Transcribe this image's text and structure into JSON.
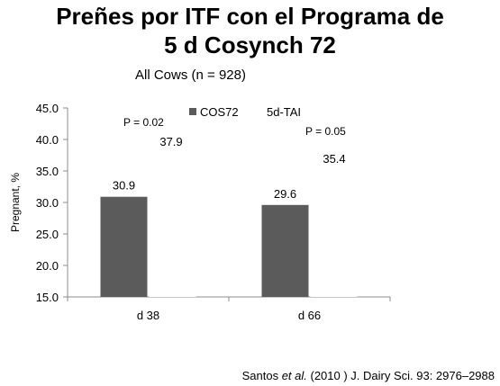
{
  "title_lines": [
    "Preñes por ITF con el Programa de",
    "5 d Cosynch 72"
  ],
  "subtitle": "All Cows (n = 928)",
  "citation": {
    "pre": "Santos ",
    "em": "et al.",
    "post": " (2010 ) J. Dairy Sci. 93: 2976–2988"
  },
  "chart_data": {
    "type": "bar",
    "categories": [
      "d 38",
      "d 66"
    ],
    "series": [
      {
        "name": "COS72",
        "values": [
          30.9,
          29.6
        ],
        "color": "#5b5b5b"
      },
      {
        "name": "5d-TAI",
        "values": [
          37.9,
          35.4
        ],
        "color": "#ffffff"
      }
    ],
    "data_labels": {
      "COS72": [
        "30.9",
        "29.6"
      ],
      "5d-TAI": [
        "37.9",
        "35.4"
      ]
    },
    "p_values": [
      "P = 0.02",
      "P = 0.05"
    ],
    "xlabel": "",
    "ylabel": "Pregnant, %",
    "ylim": [
      15.0,
      45.0
    ],
    "yticks": [
      15.0,
      20.0,
      25.0,
      30.0,
      35.0,
      40.0,
      45.0
    ],
    "ytick_labels": [
      "15.0",
      "20.0",
      "25.0",
      "30.0",
      "35.0",
      "40.0",
      "45.0"
    ],
    "grid": false,
    "legend": "top"
  }
}
